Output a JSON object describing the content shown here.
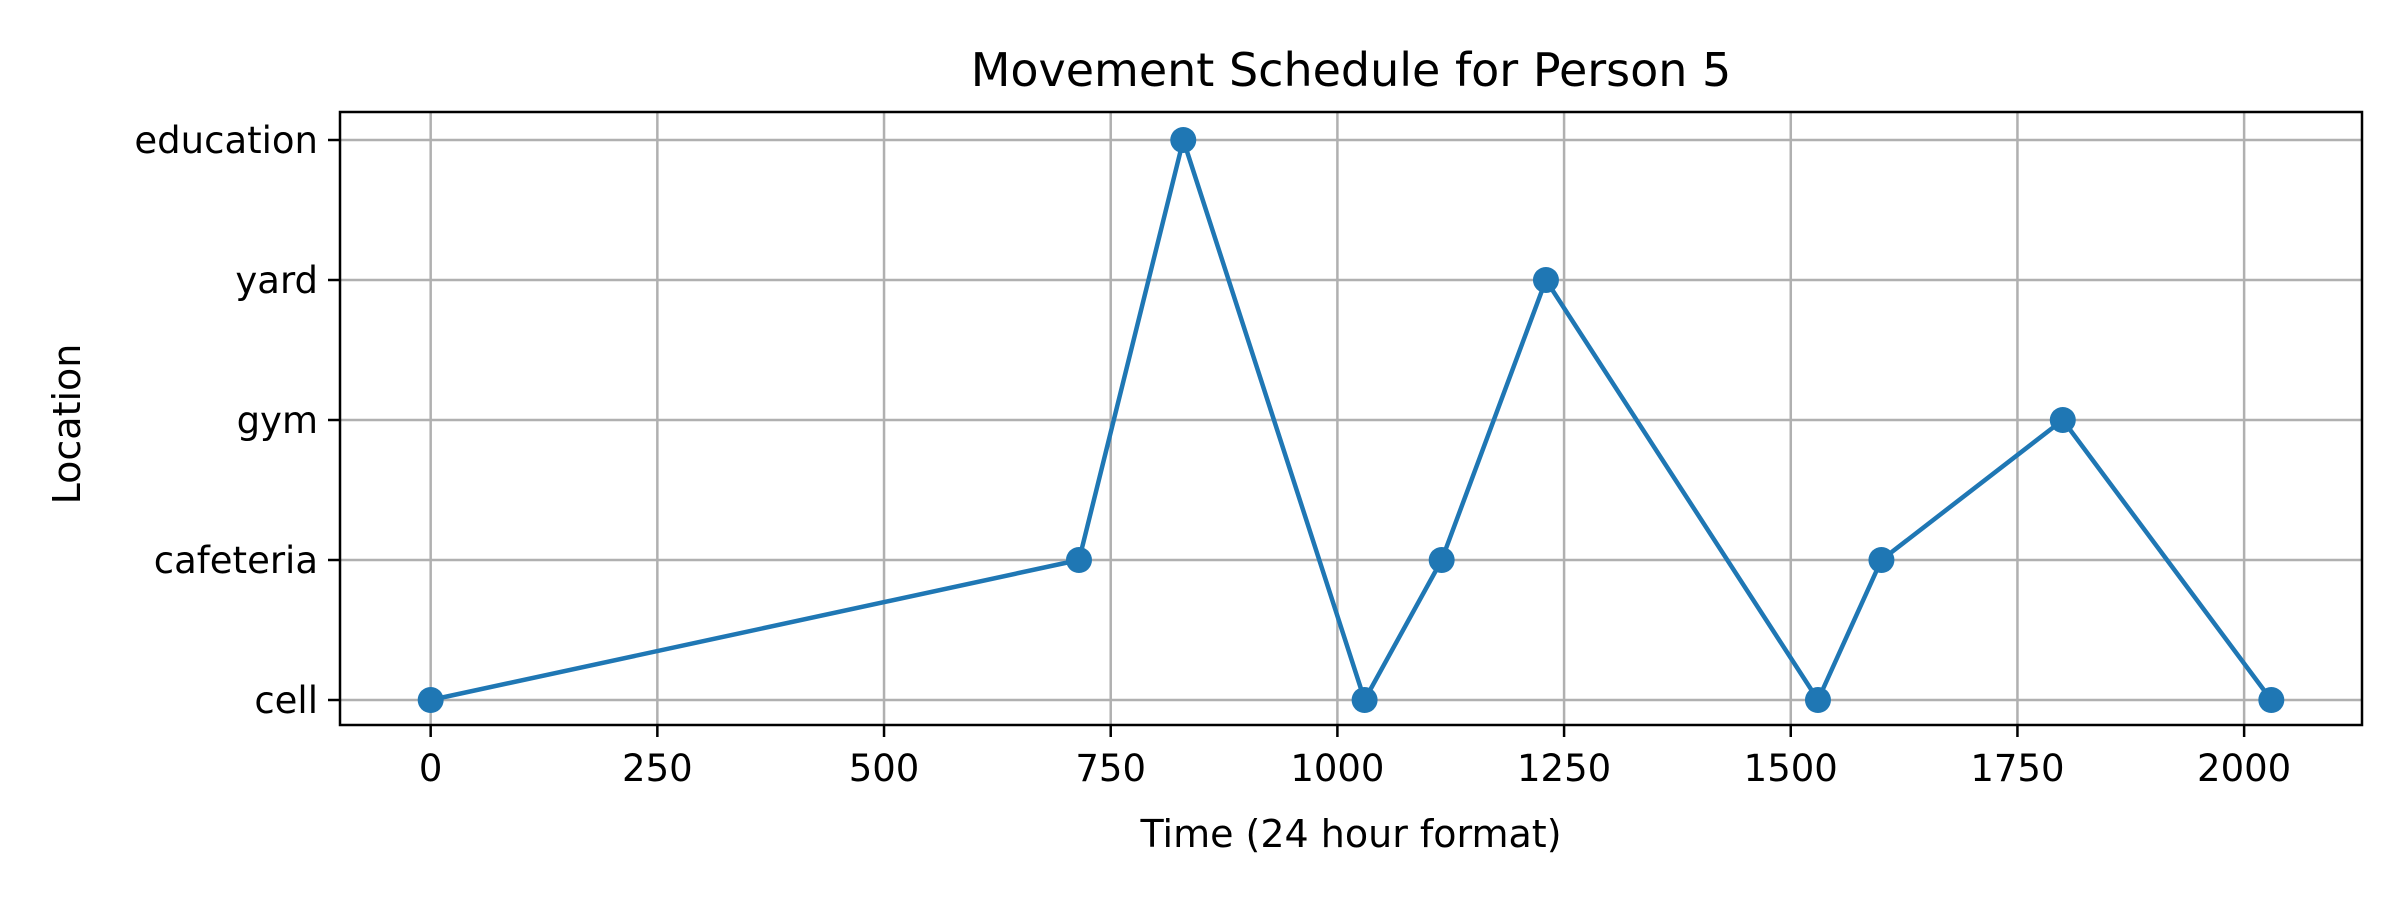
{
  "chart_data": {
    "type": "line",
    "title": "Movement Schedule for Person 5",
    "xlabel": "Time (24 hour format)",
    "ylabel": "Location",
    "x_ticks": [
      0,
      250,
      500,
      750,
      1000,
      1250,
      1500,
      1750,
      2000
    ],
    "xlim": [
      -100,
      2130
    ],
    "y_categories": [
      "cell",
      "cafeteria",
      "gym",
      "yard",
      "education"
    ],
    "grid": true,
    "color": "#1f77b4",
    "marker": "circle",
    "series": [
      {
        "points": [
          {
            "x": 0,
            "y": "cell"
          },
          {
            "x": 715,
            "y": "cafeteria"
          },
          {
            "x": 830,
            "y": "education"
          },
          {
            "x": 1030,
            "y": "cell"
          },
          {
            "x": 1115,
            "y": "cafeteria"
          },
          {
            "x": 1230,
            "y": "yard"
          },
          {
            "x": 1530,
            "y": "cell"
          },
          {
            "x": 1600,
            "y": "cafeteria"
          },
          {
            "x": 1800,
            "y": "gym"
          },
          {
            "x": 2030,
            "y": "cell"
          }
        ]
      }
    ]
  }
}
